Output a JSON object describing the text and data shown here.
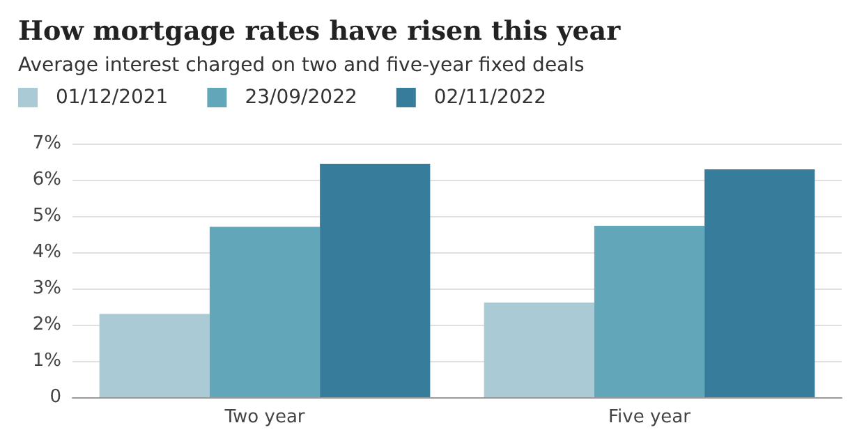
{
  "chart_data": {
    "type": "bar",
    "title": "How mortgage rates have risen this year",
    "subtitle": "Average interest charged on two and five-year fixed deals",
    "categories": [
      "Two year",
      "Five year"
    ],
    "series": [
      {
        "name": "01/12/2021",
        "color": "#aacbd6",
        "values": [
          2.3,
          2.61
        ]
      },
      {
        "name": "23/09/2022",
        "color": "#62a6ba",
        "values": [
          4.7,
          4.73
        ]
      },
      {
        "name": "02/11/2022",
        "color": "#387c9c",
        "values": [
          6.44,
          6.29
        ]
      }
    ],
    "ylim": [
      0,
      7
    ],
    "yticks": [
      {
        "value": 0,
        "label": "0"
      },
      {
        "value": 1,
        "label": "1%"
      },
      {
        "value": 2,
        "label": "2%"
      },
      {
        "value": 3,
        "label": "3%"
      },
      {
        "value": 4,
        "label": "4%"
      },
      {
        "value": 5,
        "label": "5%"
      },
      {
        "value": 6,
        "label": "6%"
      },
      {
        "value": 7,
        "label": "7%"
      }
    ],
    "grid": "y",
    "legend": "top left"
  }
}
